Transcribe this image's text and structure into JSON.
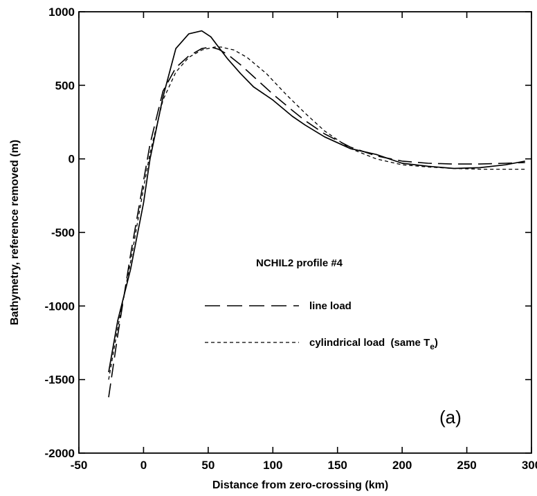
{
  "chart_data": {
    "type": "line",
    "xlabel": "Distance from zero-crossing (km)",
    "ylabel": "Bathymetry, reference removed (m)",
    "xlim": [
      -50,
      300
    ],
    "ylim": [
      -2000,
      1000
    ],
    "x_ticks": [
      -50,
      0,
      50,
      100,
      150,
      200,
      250,
      300
    ],
    "y_ticks": [
      -2000,
      -1500,
      -1000,
      -500,
      0,
      500,
      1000
    ],
    "x_tick_labels": [
      "-50",
      "0",
      "50",
      "100",
      "150",
      "200",
      "250",
      "300"
    ],
    "y_tick_labels": [
      "-2000",
      "-1500",
      "-1000",
      "-500",
      "0",
      "500",
      "1000"
    ],
    "grid": false,
    "panel_label": "(a)",
    "legend": {
      "title": "NCHIL2  profile  #4",
      "entries": [
        {
          "label": "line load",
          "style": "long-dash"
        },
        {
          "label": "cylindrical load  (same T",
          "subscript": "e",
          "suffix": ")",
          "style": "short-dash"
        }
      ]
    },
    "series": [
      {
        "style": "solid",
        "x": [
          -27,
          -20,
          -10,
          0,
          5,
          15,
          25,
          35,
          45,
          52,
          58,
          65,
          75,
          85,
          100,
          115,
          125,
          140,
          160,
          180,
          200,
          220,
          240,
          260,
          280,
          295
        ],
        "y": [
          -1450,
          -1100,
          -750,
          -300,
          0,
          420,
          750,
          850,
          870,
          830,
          760,
          680,
          580,
          490,
          400,
          290,
          230,
          150,
          70,
          30,
          -30,
          -50,
          -65,
          -60,
          -40,
          -15
        ]
      },
      {
        "style": "long-dash",
        "x": [
          -27,
          -20,
          -10,
          0,
          5,
          15,
          25,
          35,
          45,
          52,
          58,
          65,
          75,
          85,
          100,
          115,
          125,
          140,
          160,
          180,
          200,
          220,
          240,
          260,
          280,
          295
        ],
        "y": [
          -1620,
          -1200,
          -650,
          -150,
          100,
          460,
          620,
          700,
          750,
          760,
          745,
          710,
          640,
          560,
          440,
          330,
          260,
          170,
          80,
          20,
          -15,
          -30,
          -35,
          -35,
          -30,
          -25
        ]
      },
      {
        "style": "short-dash",
        "x": [
          -27,
          -20,
          -10,
          0,
          5,
          15,
          25,
          35,
          45,
          55,
          60,
          70,
          80,
          95,
          110,
          125,
          140,
          160,
          180,
          200,
          220,
          240,
          260,
          280,
          295
        ],
        "y": [
          -1500,
          -1150,
          -700,
          -200,
          40,
          400,
          590,
          690,
          740,
          760,
          760,
          740,
          690,
          580,
          440,
          310,
          190,
          70,
          0,
          -40,
          -55,
          -65,
          -70,
          -70,
          -70
        ]
      }
    ]
  }
}
